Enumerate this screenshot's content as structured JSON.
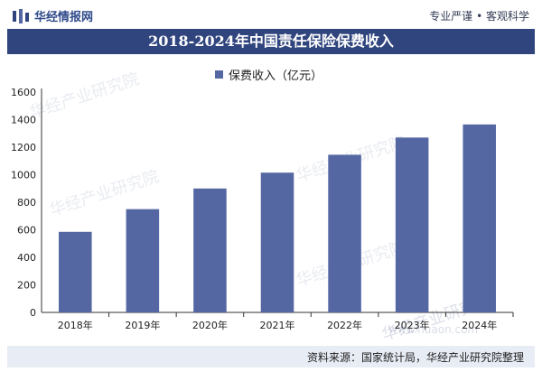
{
  "header": {
    "logo_text": "华经情报网",
    "tagline": "专业严谨 • 客观科学"
  },
  "chart_data": {
    "type": "bar",
    "title": "2018-2024年中国责任保险保费收入",
    "categories": [
      "2018年",
      "2019年",
      "2020年",
      "2021年",
      "2022年",
      "2023年",
      "2024年"
    ],
    "series": [
      {
        "name": "保费收入（亿元）",
        "values": [
          585,
          750,
          900,
          1015,
          1145,
          1270,
          1365
        ]
      }
    ],
    "ylim": [
      0,
      1600
    ],
    "yticks": [
      0,
      200,
      400,
      600,
      800,
      1000,
      1200,
      1400,
      1600
    ],
    "grid": false,
    "legend_position": "top-center",
    "bar_color": "#5567a2"
  },
  "footer": {
    "source": "资料来源：国家统计局，华经产业研究院整理"
  },
  "watermark": {
    "text": "华经产业研究院",
    "url_text": "www.huaon.com"
  }
}
